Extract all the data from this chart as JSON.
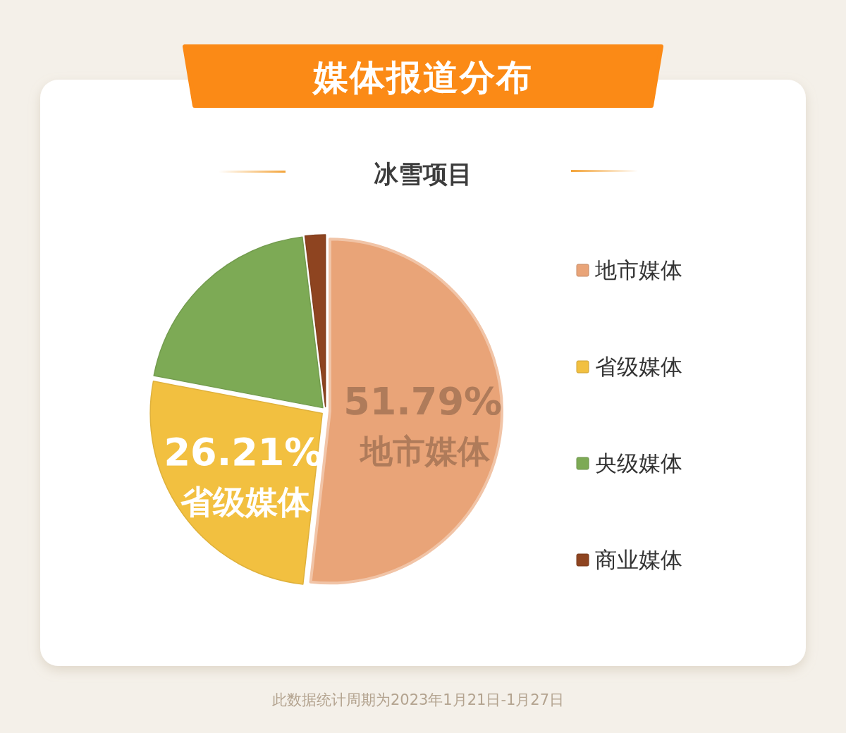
{
  "chart_data": {
    "type": "pie",
    "title": "媒体报道分布",
    "subtitle": "冰雪项目",
    "categories": [
      "地市媒体",
      "省级媒体",
      "央级媒体",
      "商业媒体"
    ],
    "values": [
      51.79,
      26.21,
      20.1,
      1.9
    ],
    "colors": [
      "#e9a478",
      "#f2c040",
      "#7daa55",
      "#8e4420"
    ],
    "value_labels": [
      "51.79%",
      "26.21%",
      null,
      null
    ],
    "legend": "right",
    "annotations": [
      "此数据统计周期为2023年1月21日-1月27日"
    ]
  }
}
